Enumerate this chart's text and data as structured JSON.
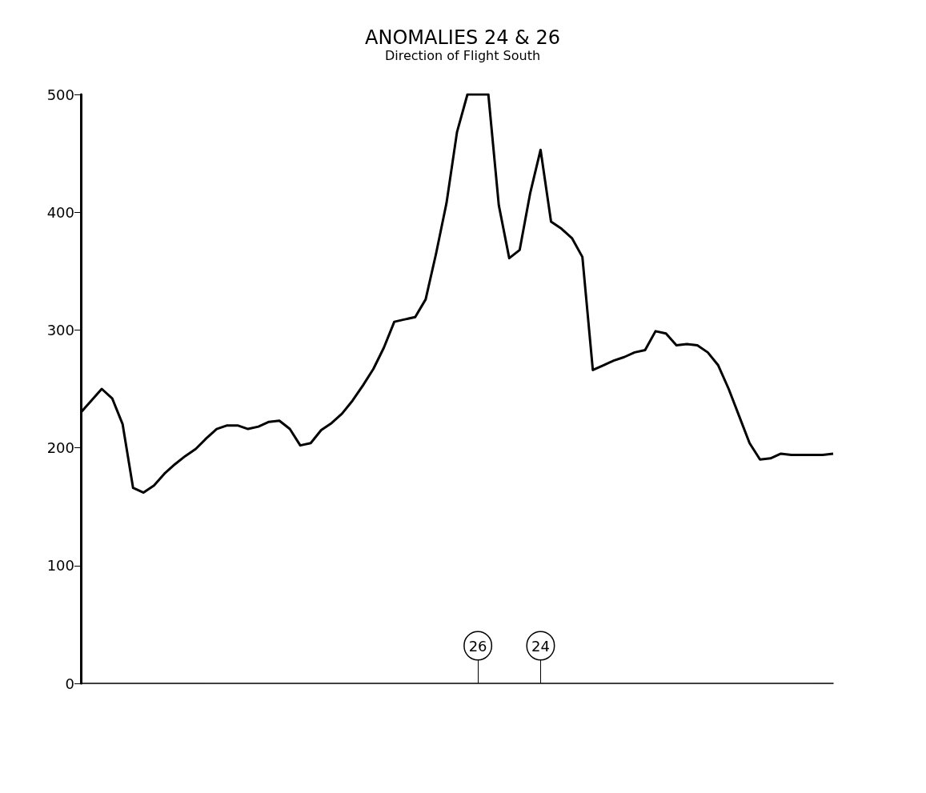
{
  "chart_data": {
    "type": "line",
    "title": "ANOMALIES 24 & 26",
    "subtitle": "Direction of Flight South",
    "categories": [
      null,
      null,
      null,
      null,
      null,
      null,
      null,
      null,
      null,
      null,
      null,
      null,
      null,
      null,
      null,
      null,
      null,
      null,
      null,
      null,
      null,
      null,
      null,
      null,
      null,
      null,
      null,
      null,
      null,
      null,
      null,
      null,
      null,
      null,
      null,
      null,
      null,
      null,
      "26",
      null,
      null,
      null,
      null,
      null,
      "24",
      null,
      null,
      null,
      null,
      null,
      null,
      null,
      null,
      null,
      null,
      null,
      null,
      null,
      null,
      null,
      null,
      null,
      null,
      null,
      null,
      null,
      null,
      null,
      null,
      null,
      null,
      null,
      null
    ],
    "values": [
      230,
      240,
      250,
      242,
      220,
      166,
      162,
      168,
      178,
      186,
      193,
      199,
      208,
      216,
      219,
      219,
      216,
      218,
      222,
      223,
      216,
      202,
      204,
      215,
      221,
      229,
      240,
      253,
      267,
      285,
      307,
      309,
      311,
      326,
      365,
      408,
      468,
      500,
      500,
      500,
      406,
      361,
      368,
      416,
      453,
      392,
      386,
      378,
      362,
      266,
      270,
      274,
      277,
      281,
      283,
      299,
      297,
      287,
      288,
      287,
      281,
      270,
      250,
      227,
      204,
      190,
      191,
      195,
      194,
      194,
      194,
      194,
      195
    ],
    "color": "#000000",
    "marker": "none",
    "ylim": [
      0,
      500
    ],
    "yticks": [
      0,
      100,
      200,
      300,
      400,
      500
    ]
  }
}
